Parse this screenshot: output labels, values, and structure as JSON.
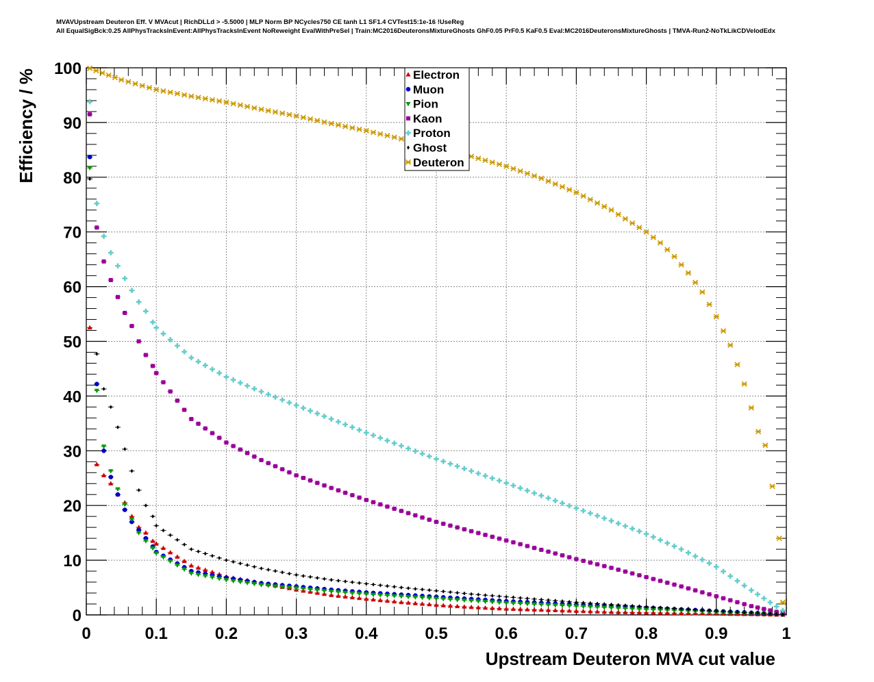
{
  "chart_data": {
    "type": "scatter",
    "title_line1": "MVAVUpstream Deuteron Eff. V MVAcut | RichDLLd > -5.5000 | MLP Norm BP NCycles750 CE tanh L1 SF1.4 CVTest15:1e-16 !UseReg",
    "title_line2": "All EqualSigBck:0.25 AllPhysTracksInEvent:AllPhysTracksInEvent NoReweight EvalWithPreSel | Train:MC2016DeuteronsMixtureGhosts GhF0.05 PrF0.5 KaF0.5 Eval:MC2016DeuteronsMixtureGhosts | TMVA-Run2-NoTkLikCDVelodEdx",
    "xlabel": "Upstream Deuteron MVA cut value",
    "ylabel": "Efficiency / %",
    "xlim": [
      0,
      1
    ],
    "ylim": [
      0,
      100
    ],
    "x_tick_labels": [
      "0",
      "0.1",
      "0.2",
      "0.3",
      "0.4",
      "0.5",
      "0.6",
      "0.7",
      "0.8",
      "0.9",
      "1"
    ],
    "y_tick_labels": [
      "0",
      "10",
      "20",
      "30",
      "40",
      "50",
      "60",
      "70",
      "80",
      "90",
      "100"
    ],
    "grid": true,
    "legend_position": "top-center",
    "series": [
      {
        "name": "Electron",
        "color": "#cc0000",
        "marker": "triangle-up",
        "x": [
          0.005,
          0.015,
          0.025,
          0.035,
          0.045,
          0.055,
          0.065,
          0.075,
          0.085,
          0.095,
          0.1,
          0.15,
          0.2,
          0.25,
          0.3,
          0.35,
          0.4,
          0.45,
          0.5,
          0.55,
          0.6,
          0.65,
          0.7,
          0.75,
          0.8,
          0.85,
          0.9,
          0.95,
          0.995
        ],
        "y": [
          52.5,
          27.5,
          25.5,
          24.0,
          22.0,
          20.5,
          18.0,
          16.0,
          15.0,
          13.5,
          13.0,
          9.0,
          7.0,
          5.8,
          4.6,
          3.6,
          2.9,
          2.3,
          1.8,
          1.4,
          1.1,
          0.9,
          0.7,
          0.5,
          0.4,
          0.3,
          0.2,
          0.1,
          0.0
        ]
      },
      {
        "name": "Muon",
        "color": "#0000cc",
        "marker": "circle",
        "x": [
          0.005,
          0.015,
          0.025,
          0.035,
          0.045,
          0.055,
          0.065,
          0.075,
          0.085,
          0.095,
          0.1,
          0.15,
          0.2,
          0.25,
          0.3,
          0.35,
          0.4,
          0.45,
          0.5,
          0.55,
          0.6,
          0.65,
          0.7,
          0.75,
          0.8,
          0.85,
          0.9,
          0.95,
          0.995
        ],
        "y": [
          83.7,
          42.2,
          30.0,
          25.2,
          22.0,
          19.2,
          17.0,
          15.5,
          14.0,
          12.5,
          11.5,
          8.0,
          6.8,
          5.8,
          5.2,
          4.6,
          4.1,
          3.7,
          3.3,
          2.9,
          2.5,
          2.2,
          1.9,
          1.6,
          1.3,
          1.0,
          0.7,
          0.4,
          0.1
        ]
      },
      {
        "name": "Pion",
        "color": "#009900",
        "marker": "triangle-down",
        "x": [
          0.005,
          0.015,
          0.025,
          0.035,
          0.045,
          0.055,
          0.065,
          0.075,
          0.085,
          0.095,
          0.1,
          0.15,
          0.2,
          0.25,
          0.3,
          0.35,
          0.4,
          0.45,
          0.5,
          0.55,
          0.6,
          0.65,
          0.7,
          0.75,
          0.8,
          0.85,
          0.9,
          0.95,
          0.995
        ],
        "y": [
          81.7,
          41.0,
          30.8,
          26.3,
          23.0,
          20.2,
          17.5,
          15.0,
          13.5,
          12.2,
          11.3,
          7.6,
          6.4,
          5.5,
          4.9,
          4.3,
          3.8,
          3.4,
          3.0,
          2.6,
          2.2,
          1.9,
          1.6,
          1.3,
          1.0,
          0.8,
          0.5,
          0.3,
          0.1
        ]
      },
      {
        "name": "Kaon",
        "color": "#990099",
        "marker": "square",
        "x": [
          0.005,
          0.015,
          0.025,
          0.035,
          0.045,
          0.055,
          0.065,
          0.075,
          0.085,
          0.095,
          0.1,
          0.15,
          0.2,
          0.25,
          0.3,
          0.35,
          0.4,
          0.45,
          0.5,
          0.55,
          0.6,
          0.65,
          0.7,
          0.75,
          0.8,
          0.85,
          0.9,
          0.95,
          0.995
        ],
        "y": [
          91.5,
          70.8,
          64.6,
          61.2,
          58.1,
          55.2,
          52.8,
          50.0,
          47.5,
          45.5,
          44.2,
          35.8,
          31.5,
          28.3,
          25.5,
          23.2,
          21.0,
          19.0,
          17.0,
          15.3,
          13.6,
          11.9,
          10.2,
          8.6,
          6.9,
          5.2,
          3.4,
          1.6,
          0.3
        ]
      },
      {
        "name": "Proton",
        "color": "#66cccc",
        "marker": "cross",
        "x": [
          0.005,
          0.015,
          0.025,
          0.035,
          0.045,
          0.055,
          0.065,
          0.075,
          0.085,
          0.095,
          0.1,
          0.15,
          0.2,
          0.25,
          0.3,
          0.35,
          0.4,
          0.45,
          0.5,
          0.55,
          0.6,
          0.65,
          0.7,
          0.75,
          0.8,
          0.85,
          0.9,
          0.95,
          0.995
        ],
        "y": [
          93.8,
          75.2,
          69.2,
          66.2,
          63.8,
          61.5,
          59.3,
          57.2,
          55.5,
          53.5,
          52.5,
          47.0,
          43.5,
          40.8,
          38.3,
          35.8,
          33.3,
          30.9,
          28.5,
          26.3,
          24.1,
          21.8,
          19.5,
          17.2,
          14.8,
          12.0,
          8.8,
          4.5,
          0.8
        ]
      },
      {
        "name": "Ghost",
        "color": "#000000",
        "marker": "diamond",
        "x": [
          0.005,
          0.015,
          0.025,
          0.035,
          0.045,
          0.055,
          0.065,
          0.075,
          0.085,
          0.095,
          0.1,
          0.15,
          0.2,
          0.25,
          0.3,
          0.35,
          0.4,
          0.45,
          0.5,
          0.55,
          0.6,
          0.65,
          0.7,
          0.75,
          0.8,
          0.85,
          0.9,
          0.95,
          0.995
        ],
        "y": [
          79.7,
          47.7,
          41.3,
          38.0,
          34.3,
          30.3,
          26.3,
          22.8,
          20.0,
          18.0,
          16.3,
          12.0,
          10.0,
          8.5,
          7.3,
          6.4,
          5.7,
          5.0,
          4.4,
          3.8,
          3.3,
          2.8,
          2.3,
          1.9,
          1.5,
          1.1,
          0.7,
          0.4,
          0.1
        ]
      },
      {
        "name": "Deuteron",
        "color": "#cc9900",
        "marker": "star",
        "x": [
          0.005,
          0.05,
          0.1,
          0.15,
          0.2,
          0.25,
          0.3,
          0.35,
          0.4,
          0.45,
          0.5,
          0.55,
          0.6,
          0.65,
          0.7,
          0.75,
          0.8,
          0.82,
          0.84,
          0.86,
          0.88,
          0.9,
          0.92,
          0.94,
          0.96,
          0.97,
          0.98,
          0.99,
          0.995
        ],
        "y": [
          99.9,
          97.8,
          96.0,
          94.8,
          93.7,
          92.4,
          91.2,
          89.8,
          88.5,
          87.0,
          85.5,
          83.8,
          82.0,
          79.8,
          77.2,
          74.0,
          70.0,
          68.0,
          65.5,
          62.5,
          59.0,
          54.5,
          49.3,
          42.2,
          33.5,
          31.0,
          23.5,
          14.0,
          2.3
        ]
      }
    ]
  }
}
